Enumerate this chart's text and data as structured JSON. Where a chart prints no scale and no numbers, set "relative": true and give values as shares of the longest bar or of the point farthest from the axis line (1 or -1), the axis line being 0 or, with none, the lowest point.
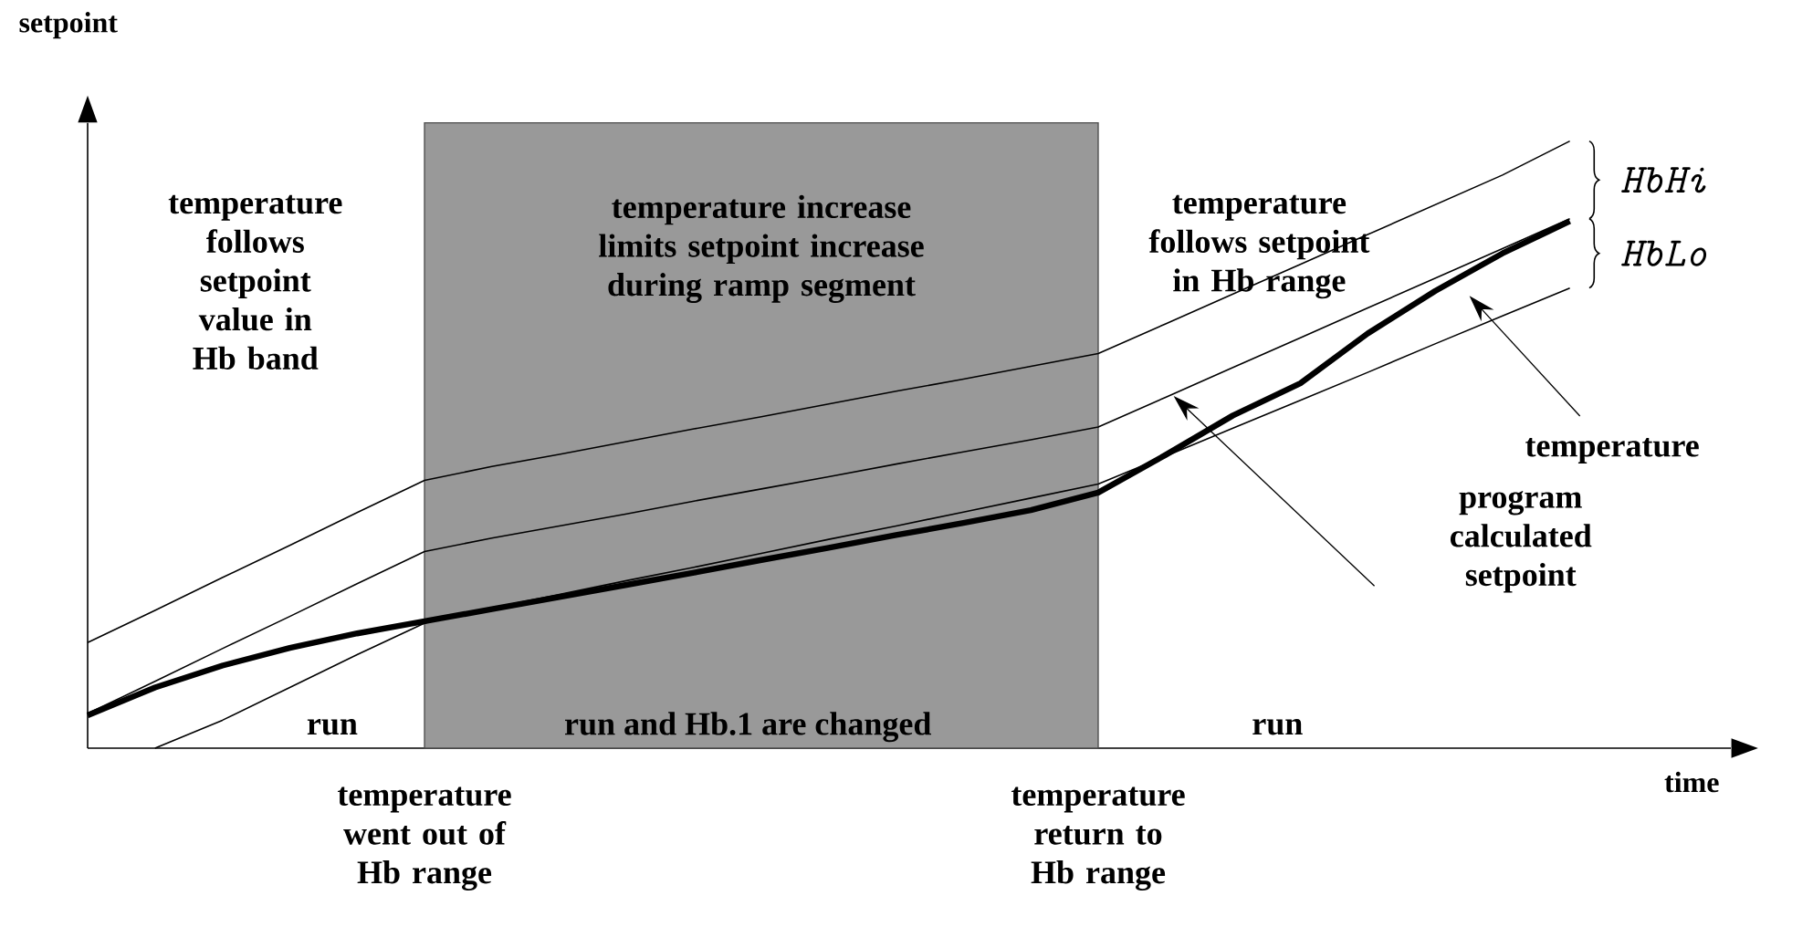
{
  "chart_data": {
    "type": "line",
    "relative": true,
    "xlabel": "time",
    "ylabel": "setpoint",
    "categories": [
      null,
      null,
      null,
      null,
      null,
      null,
      null,
      null,
      null,
      null,
      null,
      null,
      null,
      null,
      null,
      null,
      null,
      null,
      null,
      null,
      null,
      null,
      null
    ],
    "series": [
      {
        "color": "#000000",
        "values": [
          0.174,
          0.227,
          0.281,
          0.334,
          0.388,
          0.441,
          0.464,
          0.484,
          0.505,
          0.526,
          0.546,
          0.567,
          0.588,
          0.608,
          0.629,
          0.65,
          0.699,
          0.748,
          0.797,
          0.846,
          0.895,
          0.944,
          1.0
        ]
      },
      {
        "color": "#000000",
        "values": [
          0.057,
          0.11,
          0.164,
          0.217,
          0.271,
          0.324,
          0.346,
          0.366,
          0.386,
          0.407,
          0.427,
          0.447,
          0.468,
          0.488,
          0.508,
          0.529,
          0.578,
          0.627,
          0.676,
          0.725,
          0.774,
          0.823,
          0.872
        ]
      },
      {
        "color": "#000000",
        "values": [
          null,
          0,
          0.046,
          0.1,
          0.154,
          0.206,
          0.231,
          0.253,
          0.276,
          0.298,
          0.321,
          0.344,
          0.366,
          0.389,
          0.412,
          0.435,
          0.481,
          0.527,
          0.573,
          0.619,
          0.666,
          0.712,
          0.758
        ]
      },
      {
        "name": "temperature",
        "color": "#000000",
        "values": [
          0.054,
          0.1,
          0.136,
          0.165,
          0.189,
          0.209,
          0.229,
          0.249,
          0.269,
          0.289,
          0.31,
          0.33,
          0.351,
          0.371,
          0.392,
          0.421,
          0.483,
          0.548,
          0.601,
          0.683,
          0.753,
          0.815,
          0.868
        ]
      }
    ],
    "annotations": [
      "temperature follows setpoint value in Hb band",
      "temperature increase limits setpoint increase during ramp segment",
      "temperature follows setpoint in Hb range",
      "run",
      "run and Hb.1 are changed",
      "run",
      "temperature went out of Hb range",
      "temperature return to Hb range",
      "HbHi",
      "HbLo",
      "program calculated setpoint"
    ]
  }
}
